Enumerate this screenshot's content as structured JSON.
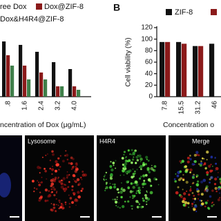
{
  "chart_data": [
    {
      "type": "bar",
      "categories": [
        ".8",
        "1.6",
        "2.4",
        "3.2",
        "4.0"
      ],
      "series": [
        {
          "name": "ree Dox",
          "color": "#111111",
          "values": [
            96,
            90,
            78,
            60,
            48
          ]
        },
        {
          "name": "Dox@ZIF-8",
          "color": "#8b1a1a",
          "values": [
            72,
            54,
            42,
            18,
            18
          ]
        },
        {
          "name": "Dox&H4R4@ZIF-8",
          "color": "#3f7f4a",
          "values": [
            54,
            30,
            30,
            18,
            12
          ]
        }
      ],
      "ylim": [
        0,
        120
      ],
      "x_label": "ncentration of Dox  (μg/mL)"
    },
    {
      "type": "bar",
      "panel_letter": "B",
      "categories": [
        "7.8",
        "15.5",
        "31.2",
        "46"
      ],
      "series": [
        {
          "name": "ZIF-8",
          "color": "#111111",
          "values": [
            95,
            95,
            88,
            92
          ]
        },
        {
          "color": "#8b1a1a",
          "values": [
            95,
            92,
            88,
            null
          ]
        }
      ],
      "ylim": [
        0,
        120
      ],
      "yticks": [
        0,
        20,
        40,
        60,
        80,
        100,
        120
      ],
      "y_label": "Cell viability (%)",
      "x_label": "Concentration o"
    }
  ],
  "images": {
    "labels": [
      "Lysosome",
      "H4R4",
      "Merge"
    ]
  }
}
